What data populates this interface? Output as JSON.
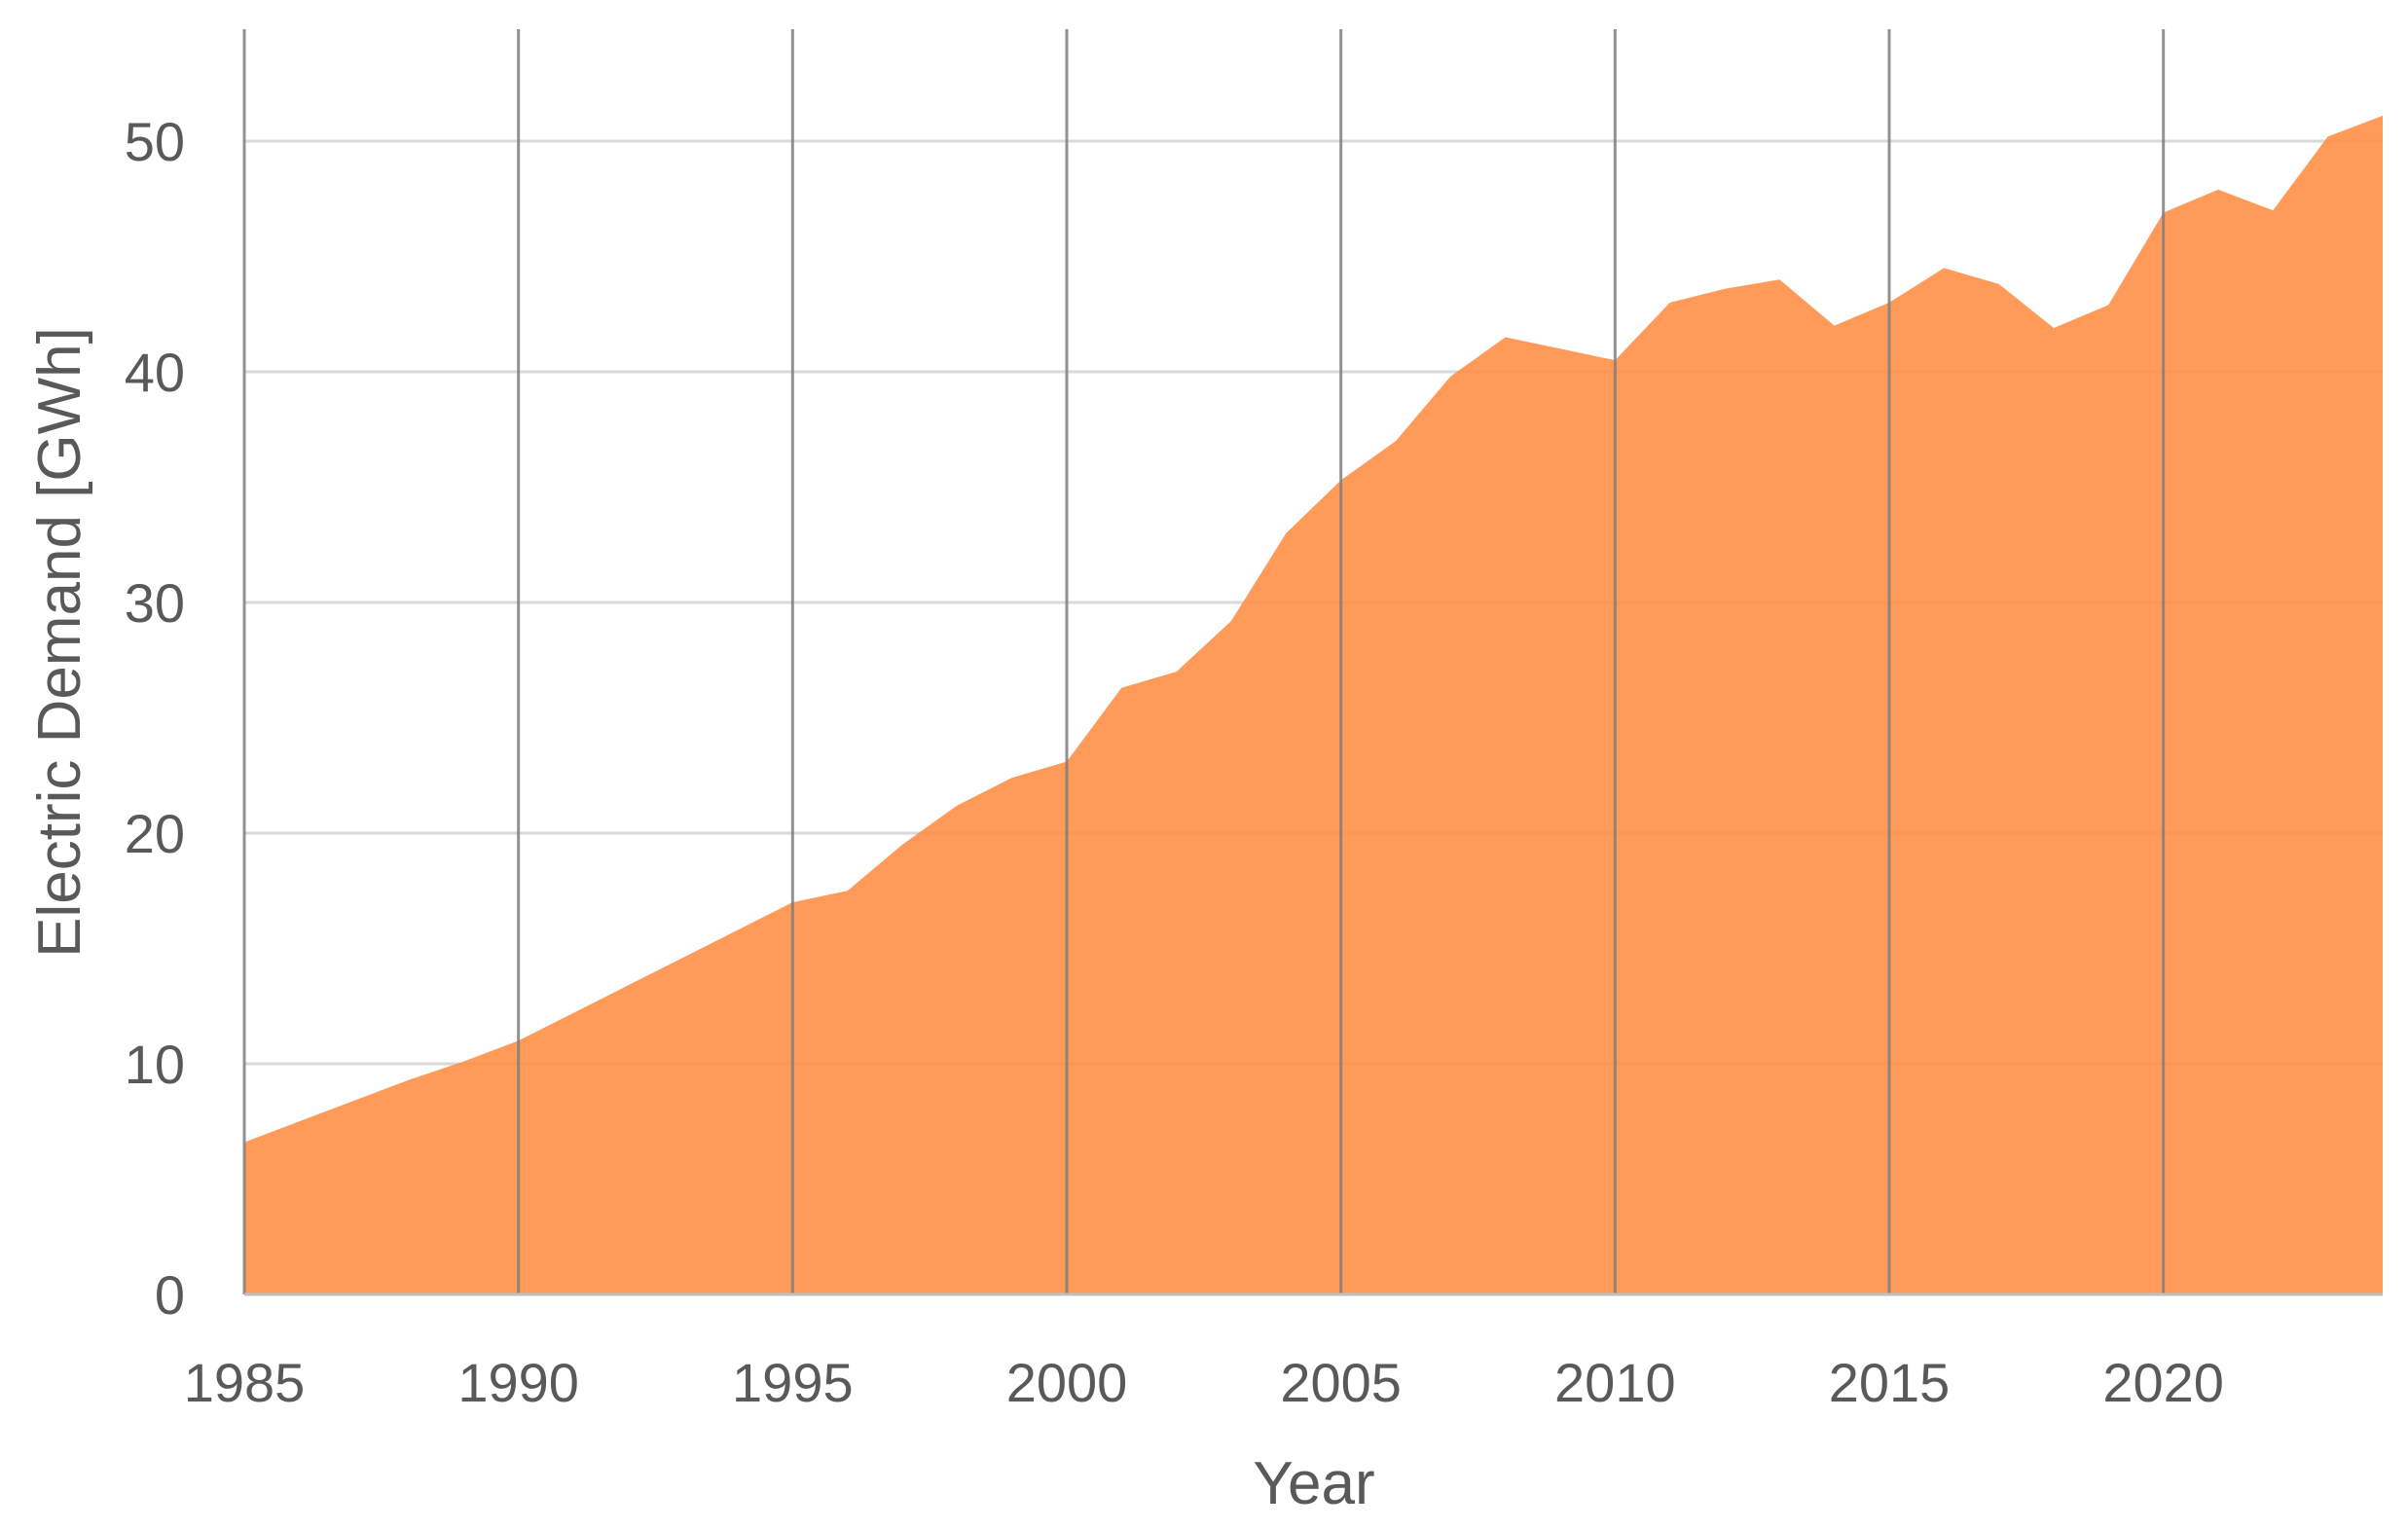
{
  "chart_data": {
    "type": "area",
    "title": "",
    "xlabel": "Year",
    "ylabel": "Electric Demand [GWh]",
    "xlim": [
      1985,
      2024
    ],
    "ylim": [
      0,
      55
    ],
    "x_ticks": [
      1985,
      1990,
      1995,
      2000,
      2005,
      2010,
      2015,
      2020
    ],
    "y_ticks": [
      0,
      10,
      20,
      30,
      40,
      50
    ],
    "x_tick_labels": [
      "1985",
      "1990",
      "1995",
      "2000",
      "2005",
      "2010",
      "2015",
      "2020"
    ],
    "y_tick_labels": [
      "0",
      "10",
      "20",
      "30",
      "40",
      "50"
    ],
    "grid": {
      "horizontal": true,
      "vertical": true
    },
    "legend": "none",
    "colors": {
      "fill": "#FF8C42",
      "fill_opacity": 0.88,
      "h_grid": "#D9D9D9",
      "v_grid": "#7F7F7F",
      "axis": "#BFBFBF",
      "text": "#595959"
    },
    "x": [
      1985,
      1986,
      1987,
      1988,
      1989,
      1990,
      1991,
      1992,
      1993,
      1994,
      1995,
      1996,
      1997,
      1998,
      1999,
      2000,
      2001,
      2002,
      2003,
      2004,
      2005,
      2006,
      2007,
      2008,
      2009,
      2010,
      2011,
      2012,
      2013,
      2014,
      2015,
      2016,
      2017,
      2018,
      2019,
      2020,
      2021,
      2022,
      2023,
      2024
    ],
    "series": [
      {
        "values": [
          6.6,
          7.5,
          8.4,
          9.3,
          10.1,
          11.0,
          12.2,
          13.4,
          14.6,
          15.8,
          17.0,
          17.5,
          19.5,
          21.2,
          22.4,
          23.1,
          26.3,
          27.0,
          29.2,
          33.0,
          35.3,
          37.0,
          39.8,
          41.5,
          41.0,
          40.5,
          43.0,
          43.6,
          44.0,
          42.0,
          43.0,
          44.5,
          43.8,
          41.9,
          42.9,
          46.9,
          47.9,
          47.0,
          50.2,
          51.1
        ]
      }
    ]
  }
}
